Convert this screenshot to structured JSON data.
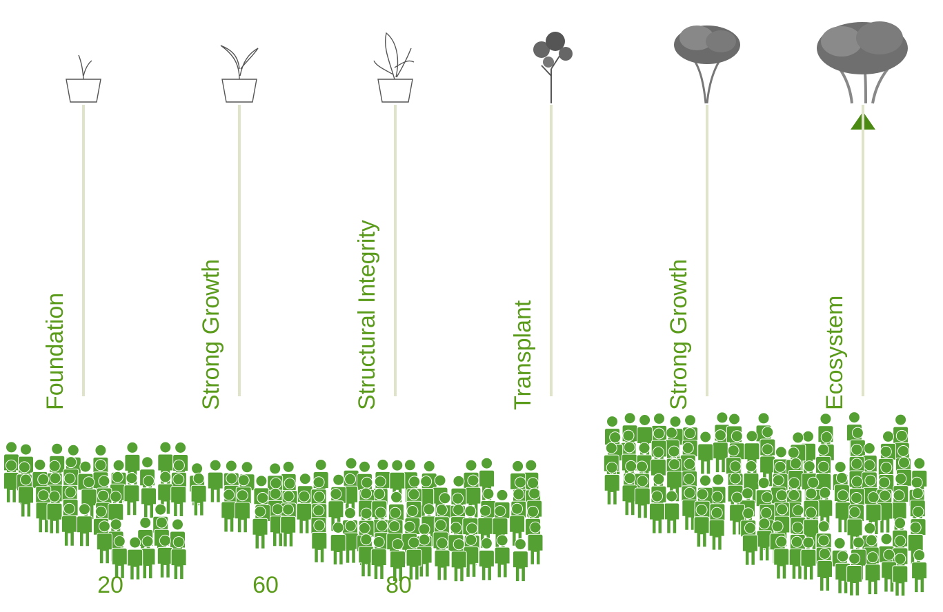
{
  "stages": [
    {
      "label": "Foundation"
    },
    {
      "label": "Strong Growth"
    },
    {
      "label": "Structural Integrity"
    },
    {
      "label": "Transplant"
    },
    {
      "label": "Strong Growth"
    },
    {
      "label": "Ecosystem"
    }
  ],
  "counts": [
    "20",
    "60",
    "80"
  ]
}
